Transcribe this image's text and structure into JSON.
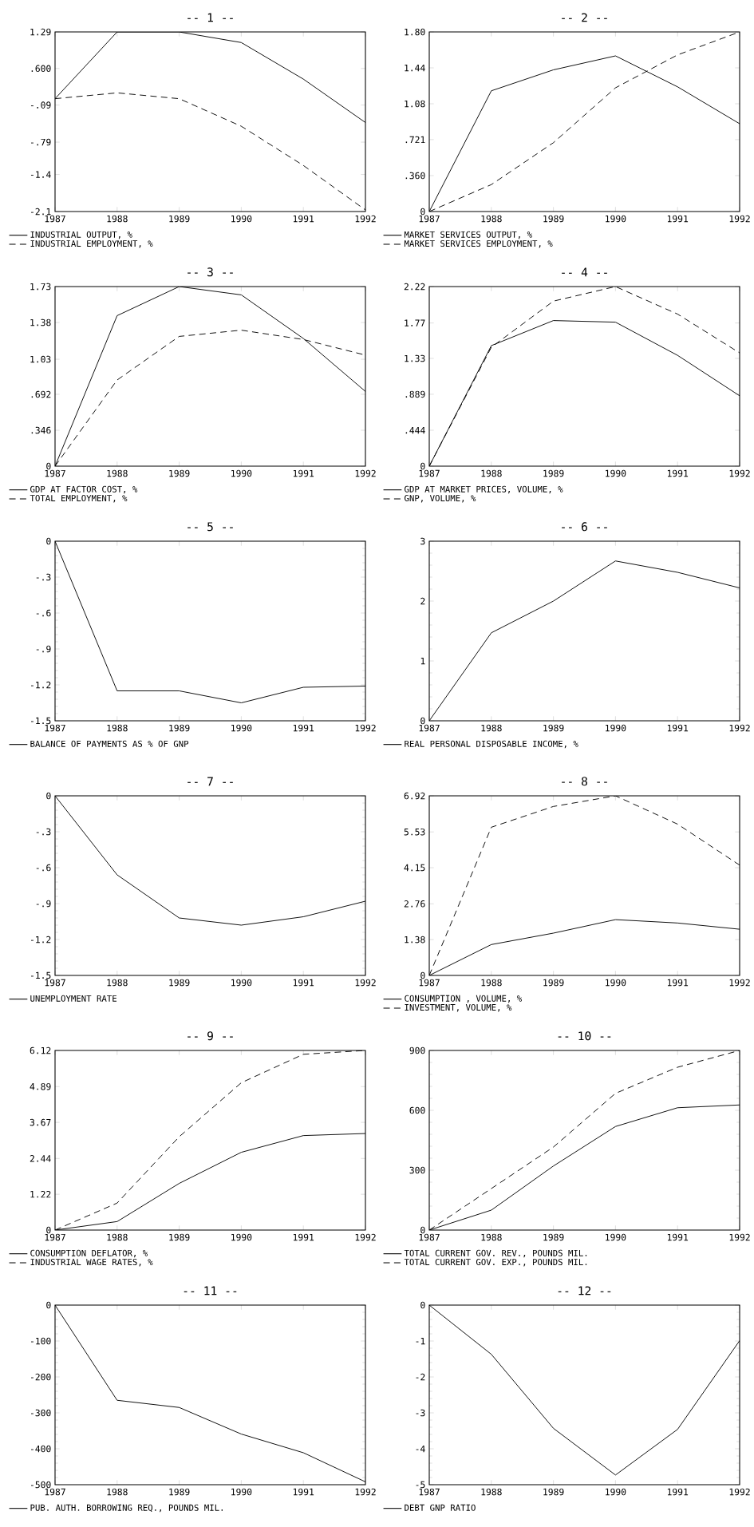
{
  "chart_data": [
    {
      "type": "line",
      "title": "-- 1 --",
      "x": [
        1987,
        1988,
        1989,
        1990,
        1991,
        1992
      ],
      "xlim": [
        1987,
        1992
      ],
      "xticks": [
        1987,
        1988,
        1989,
        1990,
        1991,
        1992
      ],
      "ylim": [
        -2.1,
        1.29
      ],
      "yticks": [
        {
          "value": -2.1,
          "label": "-2.1"
        },
        {
          "value": -1.4,
          "label": "-1.4"
        },
        {
          "value": -0.79,
          "label": "-.79"
        },
        {
          "value": -0.09,
          "label": "-.09"
        },
        {
          "value": 0.6,
          "label": ".600"
        },
        {
          "value": 1.29,
          "label": "1.29"
        }
      ],
      "legend": "bottom",
      "series": [
        {
          "name": "INDUSTRIAL OUTPUT, %",
          "color": "#000000",
          "line_style": "solid",
          "values": [
            0.03,
            1.29,
            1.29,
            1.09,
            0.4,
            -0.42
          ]
        },
        {
          "name": "INDUSTRIAL EMPLOYMENT, %",
          "color": "#000000",
          "line_style": "dashed",
          "values": [
            0.03,
            0.14,
            0.03,
            -0.49,
            -1.23,
            -2.07
          ]
        }
      ]
    },
    {
      "type": "line",
      "title": "-- 2 --",
      "x": [
        1987,
        1988,
        1989,
        1990,
        1991,
        1992
      ],
      "xlim": [
        1987,
        1992
      ],
      "xticks": [
        1987,
        1988,
        1989,
        1990,
        1991,
        1992
      ],
      "ylim": [
        0,
        1.8
      ],
      "yticks": [
        0,
        {
          "value": 0.36,
          "label": ".360"
        },
        {
          "value": 0.721,
          "label": ".721"
        },
        {
          "value": 1.08,
          "label": "1.08"
        },
        {
          "value": 1.44,
          "label": "1.44"
        },
        {
          "value": 1.8,
          "label": "1.80"
        }
      ],
      "legend": "bottom",
      "series": [
        {
          "name": "MARKET SERVICES OUTPUT, %",
          "color": "#000000",
          "line_style": "solid",
          "values": [
            0,
            1.21,
            1.42,
            1.56,
            1.25,
            0.88
          ]
        },
        {
          "name": "MARKET SERVICES EMPLOYMENT, %",
          "color": "#000000",
          "line_style": "dashed",
          "values": [
            0,
            0.27,
            0.69,
            1.24,
            1.57,
            1.8
          ]
        }
      ]
    },
    {
      "type": "line",
      "title": "-- 3 --",
      "x": [
        1987,
        1988,
        1989,
        1990,
        1991,
        1992
      ],
      "xlim": [
        1987,
        1992
      ],
      "xticks": [
        1987,
        1988,
        1989,
        1990,
        1991,
        1992
      ],
      "ylim": [
        0,
        1.73
      ],
      "yticks": [
        0,
        {
          "value": 0.346,
          "label": ".346"
        },
        {
          "value": 0.692,
          "label": ".692"
        },
        {
          "value": 1.03,
          "label": "1.03"
        },
        {
          "value": 1.384,
          "label": "1.38"
        },
        {
          "value": 1.73,
          "label": "1.73"
        }
      ],
      "legend": "bottom",
      "series": [
        {
          "name": "GDP AT FACTOR COST, %",
          "color": "#000000",
          "line_style": "solid",
          "values": [
            0,
            1.45,
            1.73,
            1.65,
            1.23,
            0.72
          ]
        },
        {
          "name": "TOTAL EMPLOYMENT, %",
          "color": "#000000",
          "line_style": "dashed",
          "values": [
            0,
            0.83,
            1.25,
            1.31,
            1.22,
            1.07
          ]
        }
      ]
    },
    {
      "type": "line",
      "title": "-- 4 --",
      "x": [
        1987,
        1988,
        1989,
        1990,
        1991,
        1992
      ],
      "xlim": [
        1987,
        1992
      ],
      "xticks": [
        1987,
        1988,
        1989,
        1990,
        1991,
        1992
      ],
      "ylim": [
        0,
        2.22
      ],
      "yticks": [
        0,
        {
          "value": 0.444,
          "label": ".444"
        },
        {
          "value": 0.889,
          "label": ".889"
        },
        {
          "value": 1.332,
          "label": "1.33"
        },
        {
          "value": 1.77,
          "label": "1.77"
        },
        {
          "value": 2.22,
          "label": "2.22"
        }
      ],
      "legend": "bottom",
      "series": [
        {
          "name": "GDP AT MARKET PRICES, VOLUME, %",
          "color": "#000000",
          "line_style": "solid",
          "values": [
            0,
            1.49,
            1.8,
            1.78,
            1.37,
            0.87
          ]
        },
        {
          "name": "GNP, VOLUME, %",
          "color": "#000000",
          "line_style": "dashed",
          "values": [
            0,
            1.47,
            2.04,
            2.22,
            1.88,
            1.4
          ]
        }
      ]
    },
    {
      "type": "line",
      "title": "-- 5 --",
      "x": [
        1987,
        1988,
        1989,
        1990,
        1991,
        1992
      ],
      "xlim": [
        1987,
        1992
      ],
      "xticks": [
        1987,
        1988,
        1989,
        1990,
        1991,
        1992
      ],
      "ylim": [
        -1.5,
        0
      ],
      "yticks": [
        {
          "value": -1.5,
          "label": "-1.5"
        },
        {
          "value": -1.2,
          "label": "-1.2"
        },
        {
          "value": -0.9,
          "label": "-.9"
        },
        {
          "value": -0.6,
          "label": "-.6"
        },
        {
          "value": -0.3,
          "label": "-.3"
        },
        0
      ],
      "legend": "bottom",
      "series": [
        {
          "name": "BALANCE OF PAYMENTS AS % OF GNP",
          "color": "#000000",
          "line_style": "solid",
          "values": [
            0,
            -1.25,
            -1.25,
            -1.35,
            -1.22,
            -1.21
          ]
        }
      ]
    },
    {
      "type": "line",
      "title": "-- 6 --",
      "x": [
        1987,
        1988,
        1989,
        1990,
        1991,
        1992
      ],
      "xlim": [
        1987,
        1992
      ],
      "xticks": [
        1987,
        1988,
        1989,
        1990,
        1991,
        1992
      ],
      "ylim": [
        0,
        3
      ],
      "yticks": [
        0,
        1,
        2,
        3
      ],
      "legend": "bottom",
      "series": [
        {
          "name": "REAL PERSONAL DISPOSABLE INCOME, %",
          "color": "#000000",
          "line_style": "solid",
          "values": [
            0,
            1.47,
            2.0,
            2.67,
            2.48,
            2.22
          ]
        }
      ]
    },
    {
      "type": "line",
      "title": "-- 7 --",
      "x": [
        1987,
        1988,
        1989,
        1990,
        1991,
        1992
      ],
      "xlim": [
        1987,
        1992
      ],
      "xticks": [
        1987,
        1988,
        1989,
        1990,
        1991,
        1992
      ],
      "ylim": [
        -1.5,
        0
      ],
      "yticks": [
        {
          "value": -1.5,
          "label": "-1.5"
        },
        {
          "value": -1.2,
          "label": "-1.2"
        },
        {
          "value": -0.9,
          "label": "-.9"
        },
        {
          "value": -0.6,
          "label": "-.6"
        },
        {
          "value": -0.3,
          "label": "-.3"
        },
        0
      ],
      "legend": "bottom",
      "series": [
        {
          "name": "UNEMPLOYMENT RATE",
          "color": "#000000",
          "line_style": "solid",
          "values": [
            0,
            -0.66,
            -1.02,
            -1.08,
            -1.01,
            -0.88
          ]
        }
      ]
    },
    {
      "type": "line",
      "title": "-- 8 --",
      "x": [
        1987,
        1988,
        1989,
        1990,
        1991,
        1992
      ],
      "xlim": [
        1987,
        1992
      ],
      "xticks": [
        1987,
        1988,
        1989,
        1990,
        1991,
        1992
      ],
      "ylim": [
        0,
        6.92
      ],
      "yticks": [
        0,
        1.38,
        2.76,
        4.15,
        5.53,
        6.92
      ],
      "legend": "bottom",
      "series": [
        {
          "name": "CONSUMPTION , VOLUME, %",
          "color": "#000000",
          "line_style": "solid",
          "values": [
            0,
            1.19,
            1.63,
            2.15,
            2.02,
            1.78
          ]
        },
        {
          "name": "INVESTMENT, VOLUME, %",
          "color": "#000000",
          "line_style": "dashed",
          "values": [
            0,
            5.71,
            6.51,
            6.92,
            5.83,
            4.25
          ]
        }
      ]
    },
    {
      "type": "line",
      "title": "-- 9 --",
      "x": [
        1987,
        1988,
        1989,
        1990,
        1991,
        1992
      ],
      "xlim": [
        1987,
        1992
      ],
      "xticks": [
        1987,
        1988,
        1989,
        1990,
        1991,
        1992
      ],
      "ylim": [
        0,
        6.12
      ],
      "yticks": [
        0,
        1.22,
        2.44,
        3.67,
        4.89,
        6.12
      ],
      "legend": "bottom",
      "series": [
        {
          "name": "CONSUMPTION DEFLATOR, %",
          "color": "#000000",
          "line_style": "solid",
          "values": [
            0,
            0.29,
            1.59,
            2.65,
            3.22,
            3.29
          ]
        },
        {
          "name": "INDUSTRIAL WAGE RATES, %",
          "color": "#000000",
          "line_style": "dashed",
          "values": [
            0,
            0.92,
            3.18,
            5.02,
            5.99,
            6.12
          ]
        }
      ]
    },
    {
      "type": "line",
      "title": "-- 10 --",
      "x": [
        1987,
        1988,
        1989,
        1990,
        1991,
        1992
      ],
      "xlim": [
        1987,
        1992
      ],
      "xticks": [
        1987,
        1988,
        1989,
        1990,
        1991,
        1992
      ],
      "ylim": [
        0,
        900
      ],
      "yticks": [
        0,
        300,
        600,
        900
      ],
      "legend": "bottom",
      "series": [
        {
          "name": "TOTAL CURRENT GOV. REV., POUNDS MIL.",
          "color": "#000000",
          "line_style": "solid",
          "values": [
            0,
            100,
            321,
            519,
            613,
            627
          ]
        },
        {
          "name": "TOTAL CURRENT GOV. EXP., POUNDS MIL.",
          "color": "#000000",
          "line_style": "dashed",
          "values": [
            0,
            208,
            416,
            685,
            816,
            900
          ]
        }
      ]
    },
    {
      "type": "line",
      "title": "-- 11 --",
      "x": [
        1987,
        1988,
        1989,
        1990,
        1991,
        1992
      ],
      "xlim": [
        1987,
        1992
      ],
      "xticks": [
        1987,
        1988,
        1989,
        1990,
        1991,
        1992
      ],
      "ylim": [
        -500,
        0
      ],
      "yticks": [
        -500,
        -400,
        -300,
        -200,
        -100,
        0
      ],
      "legend": "bottom",
      "series": [
        {
          "name": "PUB. AUTH. BORROWING REQ., POUNDS MIL.",
          "color": "#000000",
          "line_style": "solid",
          "values": [
            0,
            -265,
            -285,
            -359,
            -411,
            -492
          ]
        }
      ]
    },
    {
      "type": "line",
      "title": "-- 12 --",
      "x": [
        1987,
        1988,
        1989,
        1990,
        1991,
        1992
      ],
      "xlim": [
        1987,
        1992
      ],
      "xticks": [
        1987,
        1988,
        1989,
        1990,
        1991,
        1992
      ],
      "ylim": [
        -5,
        0
      ],
      "yticks": [
        -5,
        -4,
        -3,
        -2,
        -1,
        0
      ],
      "legend": "bottom",
      "series": [
        {
          "name": "DEBT GNP RATIO",
          "color": "#000000",
          "line_style": "solid",
          "values": [
            0,
            -1.37,
            -3.43,
            -4.73,
            -3.46,
            -0.99
          ]
        }
      ]
    }
  ]
}
